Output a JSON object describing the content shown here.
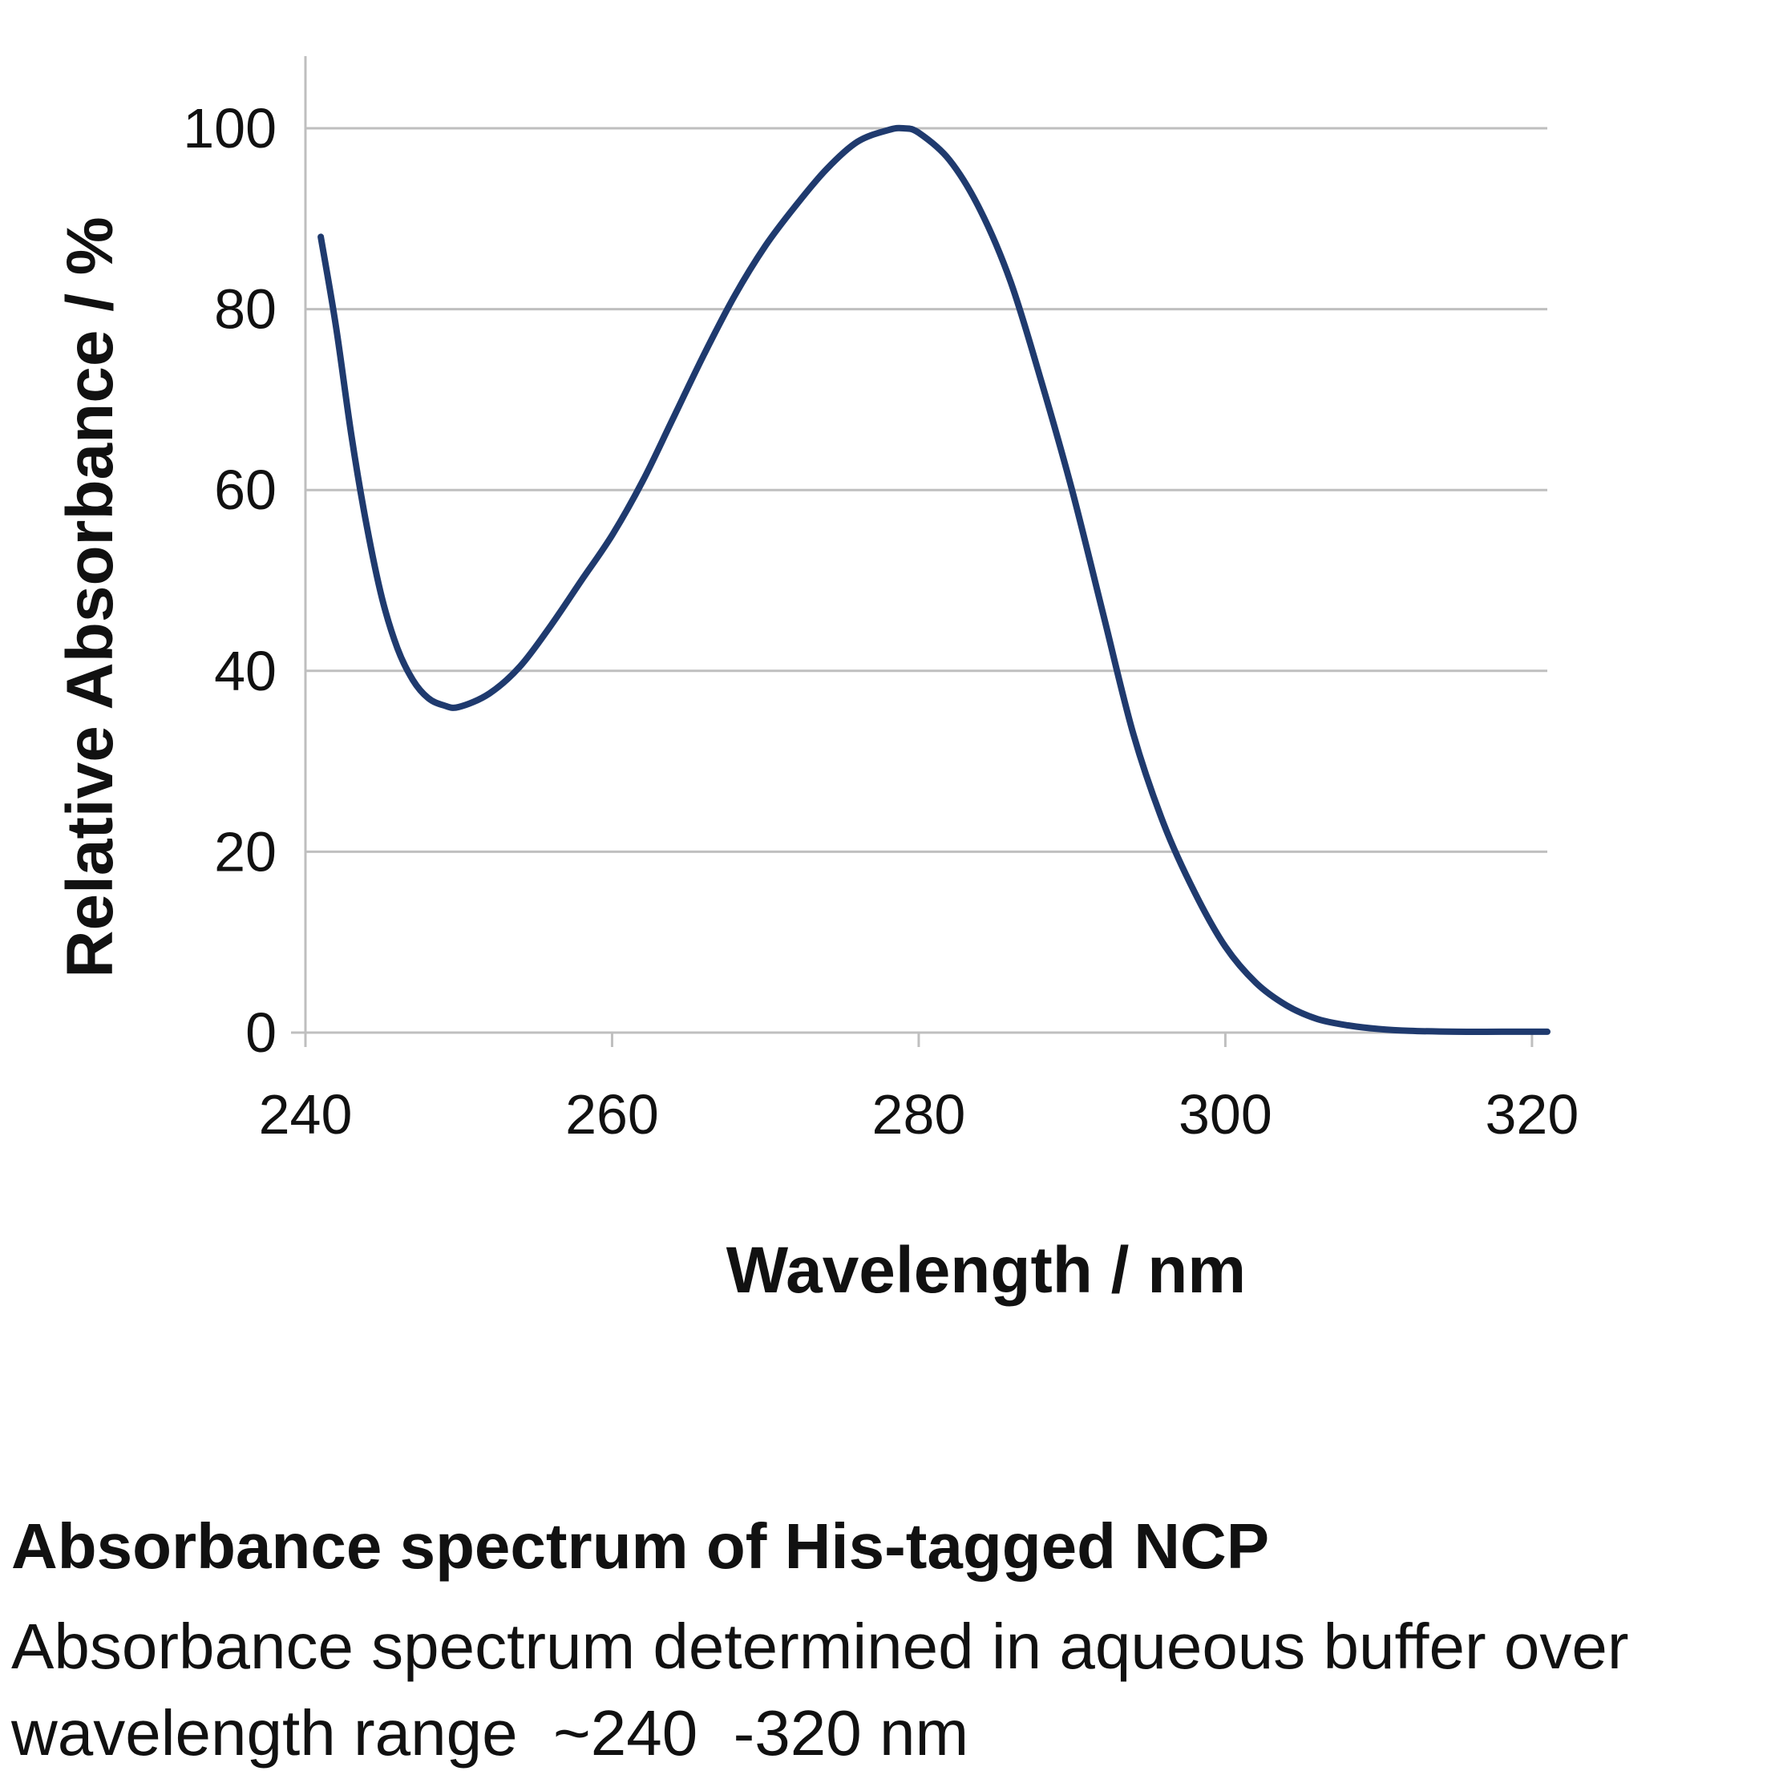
{
  "chart_data": {
    "type": "line",
    "xlabel": "Wavelength / nm",
    "ylabel": "Relative Absorbance / %",
    "xlim": [
      240,
      321
    ],
    "ylim": [
      0,
      100
    ],
    "x_ticks": [
      240,
      260,
      280,
      300,
      320
    ],
    "y_ticks": [
      0,
      20,
      40,
      60,
      80,
      100
    ],
    "grid": "horizontal",
    "legend": "none",
    "colors": {
      "line": "#1f3a6e",
      "grid": "#bfbfbf",
      "axis": "#bfbfbf"
    },
    "series": [
      {
        "x": [
          241,
          242,
          243,
          244,
          245,
          246,
          247,
          248,
          249,
          250,
          252,
          254,
          256,
          258,
          260,
          262,
          264,
          266,
          268,
          270,
          272,
          274,
          276,
          278,
          279,
          280,
          282,
          284,
          286,
          288,
          290,
          292,
          294,
          296,
          298,
          300,
          302,
          304,
          306,
          308,
          310,
          312,
          315,
          318,
          321
        ],
        "y": [
          88,
          78,
          66,
          56,
          48,
          42.5,
          39,
          37,
          36.2,
          36,
          37.5,
          40.5,
          45,
          50,
          55,
          61,
          68,
          75,
          81.5,
          87,
          91.5,
          95.5,
          98.5,
          99.8,
          100,
          99.5,
          96.5,
          91,
          83,
          72,
          60,
          46.5,
          33,
          23,
          15.5,
          9.5,
          5.5,
          3,
          1.5,
          0.8,
          0.4,
          0.2,
          0.1,
          0.1,
          0.1
        ]
      }
    ]
  },
  "caption": {
    "title": "Absorbance spectrum of His-tagged NCP",
    "body": "Absorbance spectrum determined in aqueous buffer over\nwavelength range  ~240  -320 nm"
  }
}
